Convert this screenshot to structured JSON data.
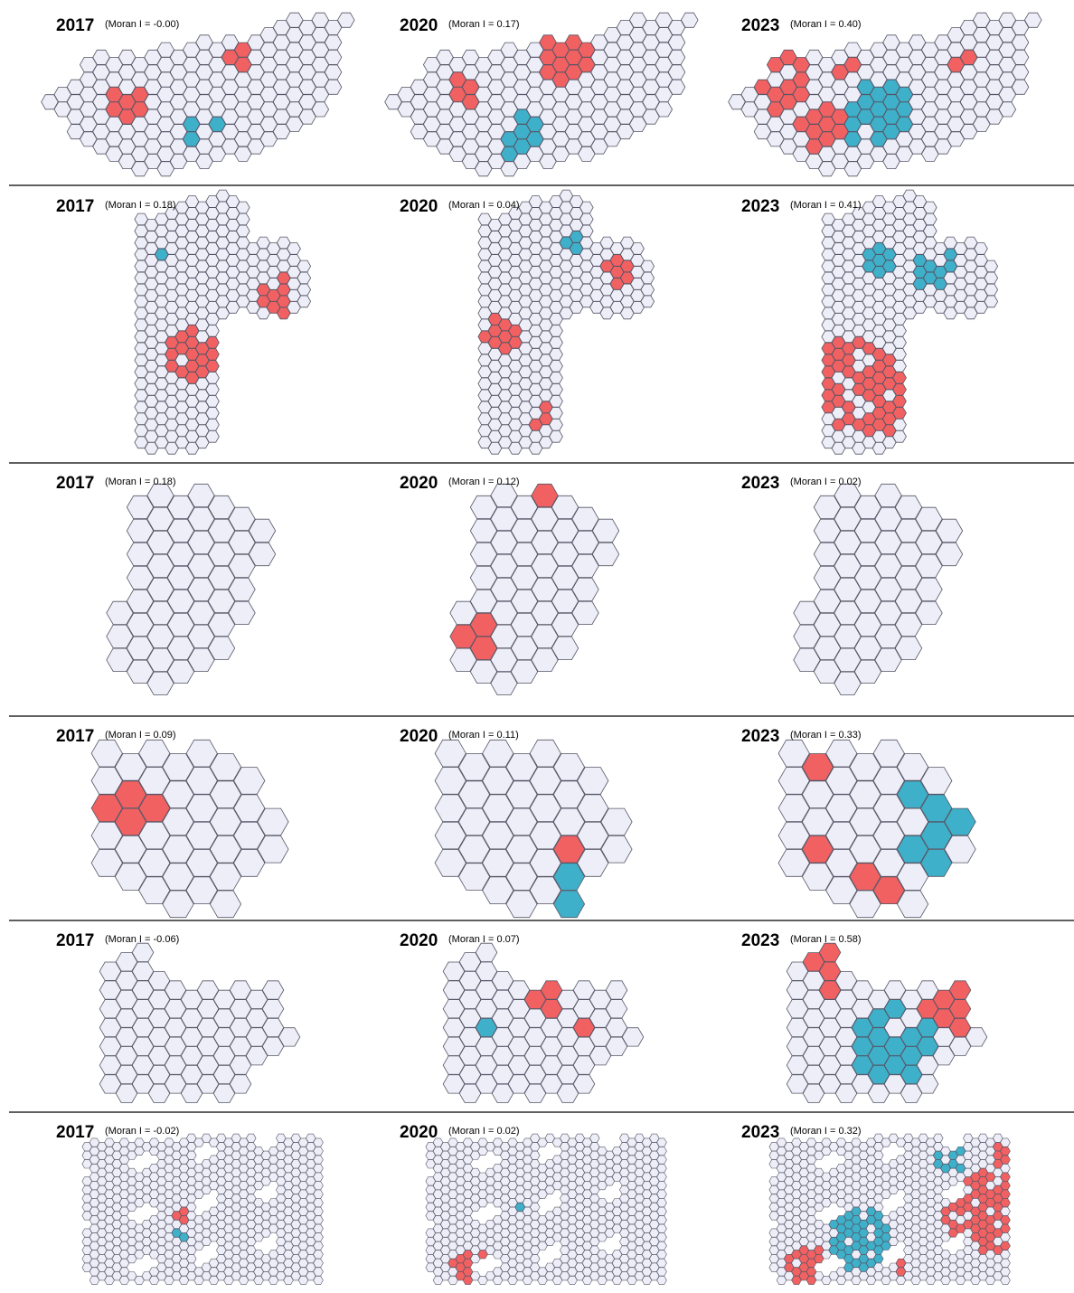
{
  "panels": [
    {
      "year": "2017",
      "moran": "(Moran I = -0.00)"
    },
    {
      "year": "2020",
      "moran": "(Moran I = 0.17)"
    },
    {
      "year": "2023",
      "moran": "(Moran I = 0.40)"
    },
    {
      "year": "2017",
      "moran": "(Moran I = 0.18)"
    },
    {
      "year": "2020",
      "moran": "(Moran I = 0.04)"
    },
    {
      "year": "2023",
      "moran": "(Moran I = 0.41)"
    },
    {
      "year": "2017",
      "moran": "(Moran I = 0.18)"
    },
    {
      "year": "2020",
      "moran": "(Moran I = 0.12)"
    },
    {
      "year": "2023",
      "moran": "(Moran I = 0.02)"
    },
    {
      "year": "2017",
      "moran": "(Moran I = 0.09)"
    },
    {
      "year": "2020",
      "moran": "(Moran I = 0.11)"
    },
    {
      "year": "2023",
      "moran": "(Moran I = 0.33)"
    },
    {
      "year": "2017",
      "moran": "(Moran I = -0.06)"
    },
    {
      "year": "2020",
      "moran": "(Moran I = 0.07)"
    },
    {
      "year": "2023",
      "moran": "(Moran I = 0.58)"
    },
    {
      "year": "2017",
      "moran": "(Moran I = -0.02)"
    },
    {
      "year": "2020",
      "moran": "(Moran I = 0.02)"
    },
    {
      "year": "2023",
      "moran": "(Moran I = 0.32)"
    }
  ]
}
